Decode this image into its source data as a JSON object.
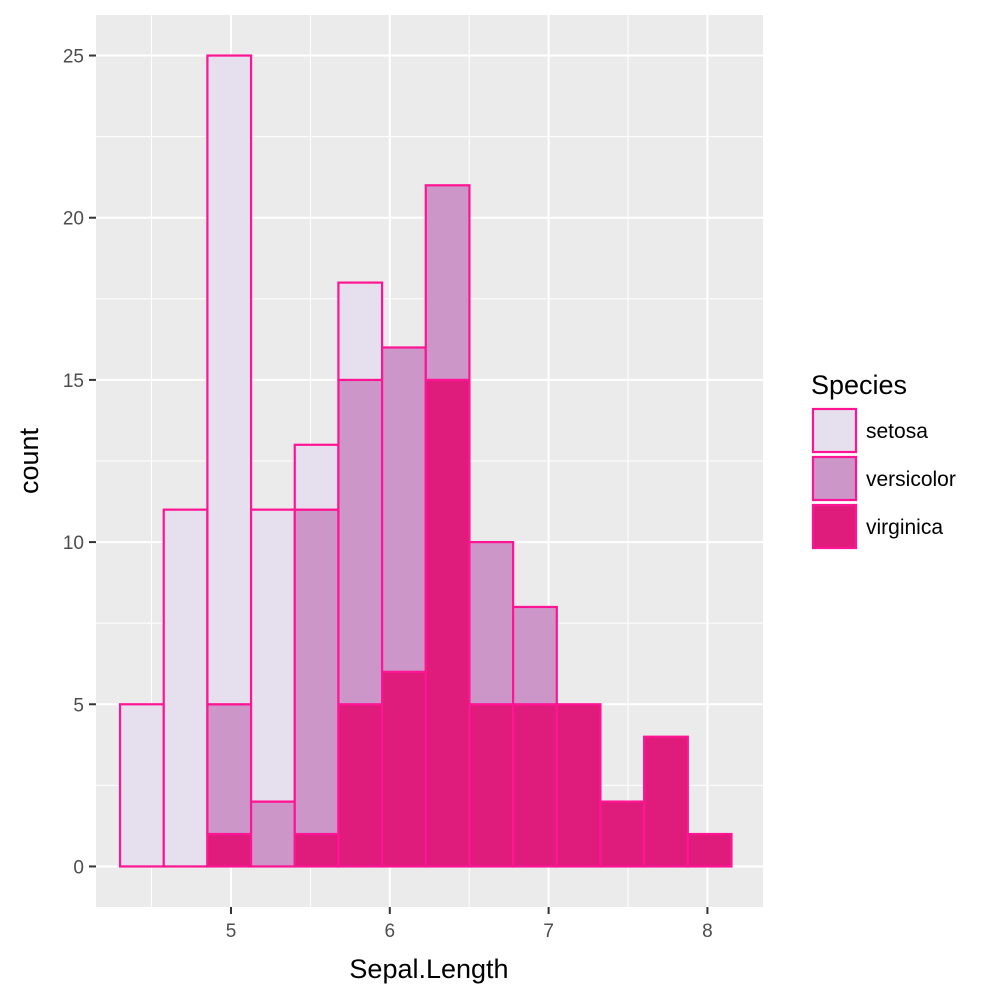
{
  "chart_data": {
    "type": "bar",
    "stacked": true,
    "xlabel": "Sepal.Length",
    "ylabel": "count",
    "xlim": [
      4.15,
      8.35
    ],
    "ylim": [
      -1.25,
      26.25
    ],
    "xticks": [
      5,
      6,
      7,
      8
    ],
    "yticks": [
      0,
      5,
      10,
      15,
      20,
      25
    ],
    "bin_width": 0.275,
    "bins": [
      4.439,
      4.714,
      4.989,
      5.264,
      5.539,
      5.814,
      6.089,
      6.364,
      6.639,
      6.914,
      7.189,
      7.464,
      7.739,
      8.014
    ],
    "grid": true,
    "legend": {
      "title": "Species",
      "position": "right"
    },
    "series": [
      {
        "name": "setosa",
        "color": "#E6E0EE",
        "values": [
          5,
          11,
          20,
          9,
          2,
          3,
          0,
          0,
          0,
          0,
          0,
          0,
          0,
          0
        ]
      },
      {
        "name": "versicolor",
        "color": "#CC96C9",
        "values": [
          0,
          0,
          4,
          2,
          10,
          10,
          10,
          6,
          5,
          3,
          0,
          0,
          0,
          0
        ]
      },
      {
        "name": "virginica",
        "color": "#DF1C7B",
        "values": [
          0,
          0,
          1,
          0,
          1,
          5,
          6,
          15,
          5,
          5,
          5,
          2,
          4,
          1
        ]
      }
    ],
    "outline_color": "#FF1493",
    "panel_background": "#EBEBEB"
  }
}
